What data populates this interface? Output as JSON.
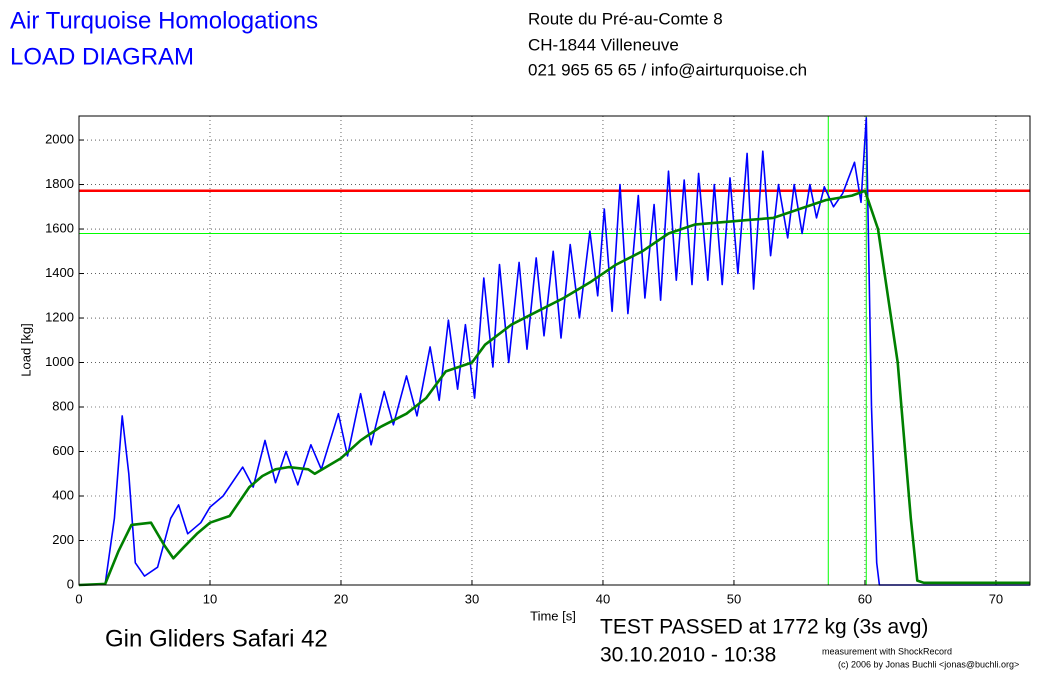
{
  "header": {
    "title": "Air Turquoise Homologations",
    "subtitle": "LOAD DIAGRAM",
    "address": [
      "Route du Pré-au-Comte 8",
      "CH-1844 Villeneuve",
      "021 965 65 65 / info@airturquoise.ch"
    ]
  },
  "footer": {
    "glider": "Gin Gliders Safari 42",
    "result": "TEST PASSED at 1772 kg (3s avg)",
    "date": "30.10.2010 - 10:38",
    "credit": [
      "measurement with ShockRecord",
      "(c) 2006 by Jonas Buchli <jonas@buchli.org>"
    ]
  },
  "chart_data": {
    "type": "line",
    "x_label": "Time [s]",
    "y_label": "Load [kg]",
    "xlim": [
      0,
      72.6
    ],
    "ylim": [
      0,
      2108
    ],
    "xticks": [
      0,
      10,
      20,
      30,
      40,
      50,
      60,
      70
    ],
    "yticks": [
      0,
      200,
      400,
      600,
      800,
      1000,
      1200,
      1400,
      1600,
      1800,
      2000
    ],
    "grid": true,
    "series": [
      {
        "color": "#0000ff",
        "x": [
          0,
          2,
          2.7,
          3.3,
          3.8,
          4.3,
          5,
          6,
          7,
          7.6,
          8.3,
          9.3,
          10,
          11,
          12.5,
          13.3,
          14.2,
          15,
          15.8,
          16.7,
          17.7,
          18.5,
          19.8,
          20.5,
          21.5,
          22.3,
          23.3,
          24,
          25,
          25.8,
          26.8,
          27.5,
          28.2,
          28.9,
          29.5,
          30.2,
          30.9,
          31.6,
          32.1,
          32.8,
          33.6,
          34.2,
          34.9,
          35.5,
          36.2,
          36.8,
          37.5,
          38.2,
          39,
          39.6,
          40.1,
          40.7,
          41.3,
          41.9,
          42.7,
          43.2,
          43.9,
          44.4,
          45,
          45.6,
          46.2,
          46.8,
          47.3,
          48,
          48.5,
          49.1,
          49.7,
          50.3,
          51,
          51.5,
          52.2,
          52.8,
          53.4,
          54.1,
          54.6,
          55.2,
          55.8,
          56.3,
          56.9,
          57.6,
          58.3,
          59.2,
          59.7,
          60.1,
          60.5,
          60.9,
          61.1,
          72.6
        ],
        "values": [
          0,
          5,
          300,
          760,
          500,
          100,
          40,
          80,
          300,
          360,
          230,
          280,
          350,
          400,
          530,
          440,
          650,
          460,
          600,
          450,
          630,
          520,
          770,
          580,
          860,
          630,
          870,
          720,
          940,
          760,
          1070,
          830,
          1190,
          880,
          1170,
          840,
          1380,
          980,
          1440,
          1000,
          1450,
          1060,
          1470,
          1120,
          1500,
          1110,
          1530,
          1200,
          1590,
          1300,
          1690,
          1230,
          1800,
          1220,
          1750,
          1290,
          1710,
          1280,
          1860,
          1370,
          1820,
          1350,
          1850,
          1370,
          1800,
          1350,
          1830,
          1400,
          1940,
          1330,
          1950,
          1480,
          1800,
          1560,
          1800,
          1580,
          1800,
          1650,
          1790,
          1700,
          1760,
          1900,
          1720,
          2100,
          800,
          100,
          0,
          0
        ]
      },
      {
        "color": "#008000",
        "x": [
          0,
          2,
          3,
          4,
          5.5,
          6.5,
          7.2,
          8,
          9,
          10,
          11.5,
          13,
          14,
          15,
          16,
          17.5,
          18,
          20,
          21.5,
          23,
          25,
          26.5,
          28,
          30,
          31,
          33,
          35,
          37,
          39,
          41,
          43,
          45,
          47,
          49,
          51,
          53,
          55,
          57,
          59,
          60,
          61,
          62.5,
          63.5,
          64,
          64.5,
          72.6
        ],
        "values": [
          0,
          5,
          150,
          270,
          280,
          180,
          120,
          170,
          230,
          280,
          310,
          440,
          490,
          520,
          530,
          520,
          500,
          570,
          650,
          710,
          770,
          840,
          960,
          1000,
          1080,
          1170,
          1230,
          1290,
          1360,
          1440,
          1500,
          1580,
          1620,
          1630,
          1640,
          1650,
          1690,
          1730,
          1750,
          1772,
          1600,
          1000,
          300,
          20,
          10,
          10
        ]
      }
    ],
    "reference_lines": [
      {
        "value": 1772,
        "color": "#ff0000"
      },
      {
        "value": 1580,
        "color": "#00ff00"
      }
    ],
    "markers": {
      "x": [
        57.2,
        60.1
      ],
      "color": "#00ff00"
    }
  }
}
